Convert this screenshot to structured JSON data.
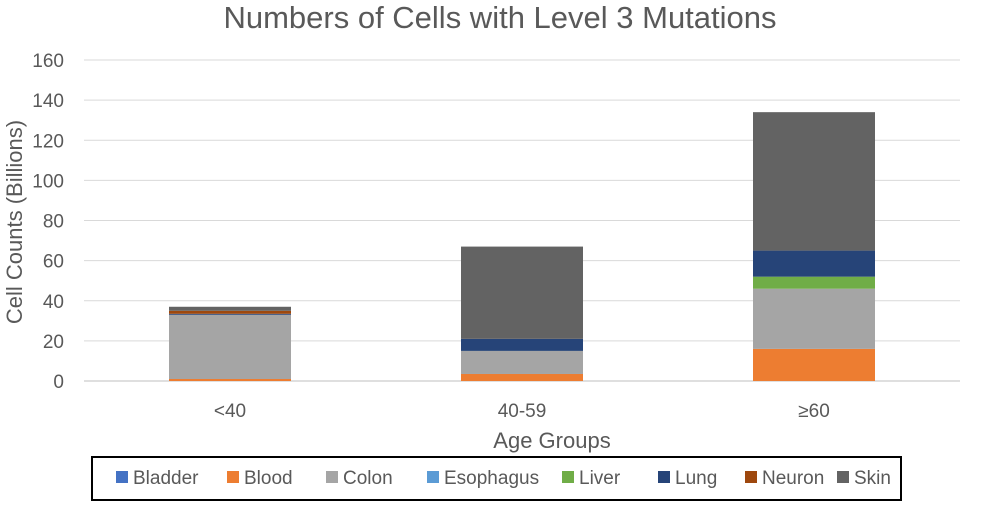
{
  "chart_data": {
    "type": "bar",
    "stacked": true,
    "title": "Numbers of Cells with Level 3 Mutations",
    "xlabel": "Age Groups",
    "ylabel": "Cell Counts (Billions)",
    "ylim": [
      0,
      160
    ],
    "yticks": [
      0,
      20,
      40,
      60,
      80,
      100,
      120,
      140,
      160
    ],
    "grid": "horizontal",
    "legend_position": "bottom",
    "categories": [
      "<40",
      "40-59",
      "≥60"
    ],
    "series": [
      {
        "name": "Bladder",
        "color": "#4472C4",
        "values": [
          0,
          0,
          0
        ]
      },
      {
        "name": "Blood",
        "color": "#ED7D31",
        "values": [
          1,
          3.5,
          16
        ]
      },
      {
        "name": "Colon",
        "color": "#A5A5A5",
        "values": [
          32,
          11.5,
          30
        ]
      },
      {
        "name": "Esophagus",
        "color": "#5B9BD5",
        "values": [
          0,
          0,
          0
        ]
      },
      {
        "name": "Liver",
        "color": "#70AD47",
        "values": [
          0,
          0,
          6
        ]
      },
      {
        "name": "Lung",
        "color": "#264478",
        "values": [
          0.5,
          6,
          13
        ]
      },
      {
        "name": "Neuron",
        "color": "#9E480E",
        "values": [
          1.5,
          0,
          0
        ]
      },
      {
        "name": "Skin",
        "color": "#636363",
        "values": [
          2,
          46,
          69
        ]
      }
    ]
  }
}
